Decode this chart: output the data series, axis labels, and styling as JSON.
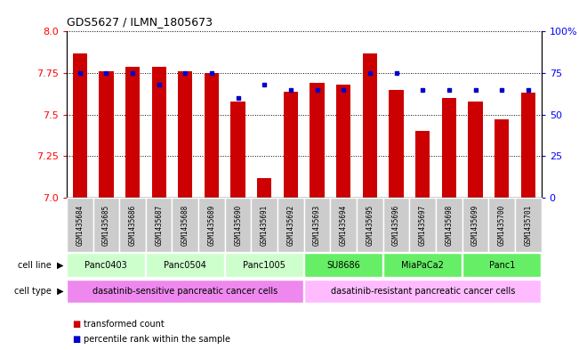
{
  "title": "GDS5627 / ILMN_1805673",
  "samples": [
    "GSM1435684",
    "GSM1435685",
    "GSM1435686",
    "GSM1435687",
    "GSM1435688",
    "GSM1435689",
    "GSM1435690",
    "GSM1435691",
    "GSM1435692",
    "GSM1435693",
    "GSM1435694",
    "GSM1435695",
    "GSM1435696",
    "GSM1435697",
    "GSM1435698",
    "GSM1435699",
    "GSM1435700",
    "GSM1435701"
  ],
  "transformed_count": [
    7.87,
    7.76,
    7.79,
    7.79,
    7.76,
    7.75,
    7.58,
    7.12,
    7.64,
    7.69,
    7.68,
    7.87,
    7.65,
    7.4,
    7.6,
    7.58,
    7.47,
    7.63
  ],
  "percentile_rank": [
    75,
    75,
    75,
    68,
    75,
    75,
    60,
    68,
    65,
    65,
    65,
    75,
    75,
    65,
    65,
    65,
    65,
    65
  ],
  "cell_lines": [
    {
      "name": "Panc0403",
      "start": 0,
      "end": 2,
      "color": "#ccffcc"
    },
    {
      "name": "Panc0504",
      "start": 3,
      "end": 5,
      "color": "#ccffcc"
    },
    {
      "name": "Panc1005",
      "start": 6,
      "end": 8,
      "color": "#ccffcc"
    },
    {
      "name": "SU8686",
      "start": 9,
      "end": 11,
      "color": "#66ee66"
    },
    {
      "name": "MiaPaCa2",
      "start": 12,
      "end": 14,
      "color": "#66ee66"
    },
    {
      "name": "Panc1",
      "start": 15,
      "end": 17,
      "color": "#66ee66"
    }
  ],
  "cell_types": [
    {
      "name": "dasatinib-sensitive pancreatic cancer cells",
      "start": 0,
      "end": 8,
      "color": "#ee88ee"
    },
    {
      "name": "dasatinib-resistant pancreatic cancer cells",
      "start": 9,
      "end": 17,
      "color": "#ffbbff"
    }
  ],
  "ylim": [
    7.0,
    8.0
  ],
  "yticks": [
    7.0,
    7.25,
    7.5,
    7.75,
    8.0
  ],
  "right_yticks": [
    0,
    25,
    50,
    75,
    100
  ],
  "bar_color": "#cc0000",
  "dot_color": "#0000cc",
  "bar_width": 0.55,
  "sample_box_color": "#cccccc",
  "legend_items": [
    {
      "label": "transformed count",
      "color": "#cc0000"
    },
    {
      "label": "percentile rank within the sample",
      "color": "#0000cc"
    }
  ]
}
